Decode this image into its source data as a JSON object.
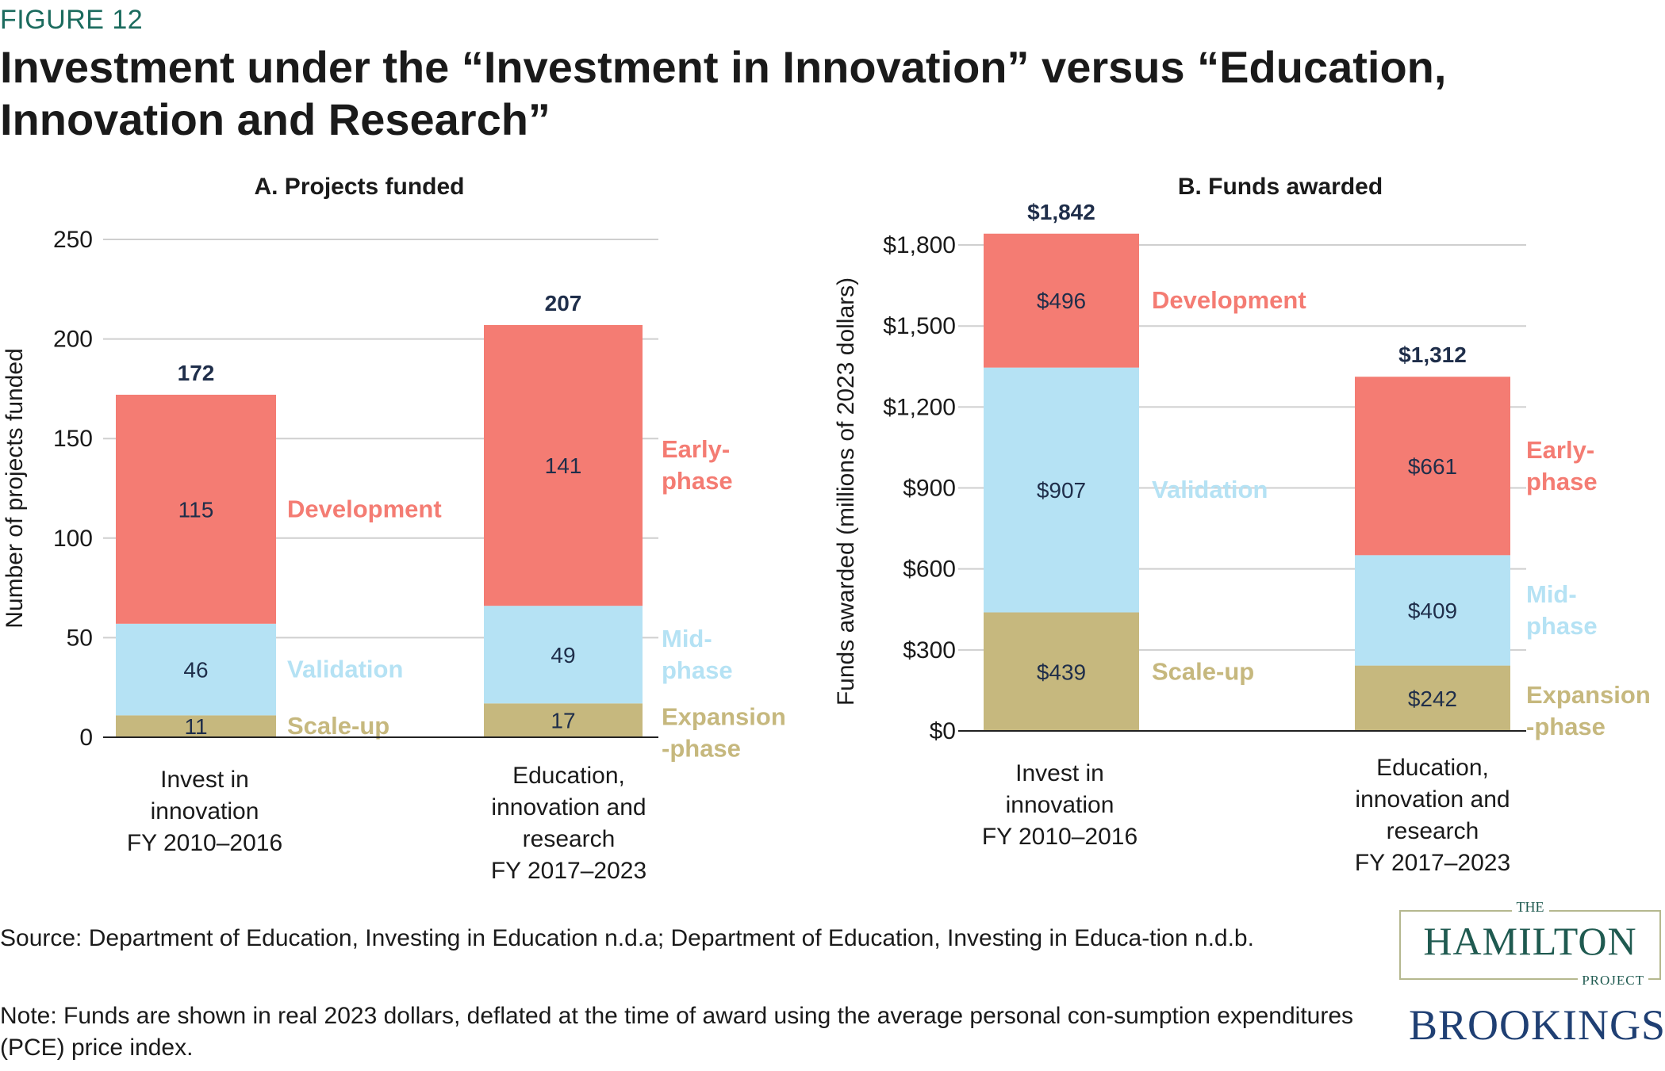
{
  "figure_label": "FIGURE 12",
  "title": "Investment under the “Investment in Innovation” versus “Education, Innovation and Research”",
  "source": "Source: Department of Education, Investing in Education n.d.a; Department of Education, Investing in Educa-tion n.d.b.",
  "note": "Note: Funds are shown in real 2023 dollars, deflated at the time of award using the average personal con-sumption expenditures (PCE) price index.",
  "logos": {
    "hamilton_the": "THE",
    "hamilton_name": "HAMILTON",
    "hamilton_project": "PROJECT",
    "brookings": "BROOKINGS"
  },
  "colors": {
    "development": "#f47c73",
    "validation": "#b5e2f4",
    "scaleup": "#c6b87e",
    "grid": "#cfcfcf",
    "total_label": "#1f2e4a"
  },
  "chart_data": [
    {
      "type": "bar",
      "stacked": true,
      "title": "A. Projects funded",
      "ylabel": "Number of projects funded",
      "ylim": [
        0,
        250
      ],
      "yticks": [
        0,
        50,
        100,
        150,
        200,
        250
      ],
      "ytick_labels": [
        "0",
        "50",
        "100",
        "150",
        "200",
        "250"
      ],
      "grid": true,
      "categories": [
        [
          "Invest in",
          "innovation",
          "FY 2010–2016"
        ],
        [
          "Education,",
          "innovation and",
          "research",
          "FY 2017–2023"
        ]
      ],
      "series": [
        {
          "key": "scaleup",
          "values": [
            11,
            17
          ],
          "value_labels": [
            "11",
            "17"
          ],
          "legend": [
            [
              "Scale-up"
            ],
            [
              "Expansion",
              "-phase"
            ]
          ]
        },
        {
          "key": "validation",
          "values": [
            46,
            49
          ],
          "value_labels": [
            "46",
            "49"
          ],
          "legend": [
            [
              "Validation"
            ],
            [
              "Mid-",
              "phase"
            ]
          ]
        },
        {
          "key": "development",
          "values": [
            115,
            141
          ],
          "value_labels": [
            "115",
            "141"
          ],
          "legend": [
            [
              "Development"
            ],
            [
              "Early-",
              "phase"
            ]
          ]
        }
      ],
      "totals": [
        172,
        207
      ],
      "total_labels": [
        "172",
        "207"
      ]
    },
    {
      "type": "bar",
      "stacked": true,
      "title": "B. Funds awarded",
      "ylabel": "Funds awarded (millions of 2023 dollars)",
      "ylim": [
        0,
        1900
      ],
      "yticks": [
        0,
        300,
        600,
        900,
        1200,
        1500,
        1800
      ],
      "ytick_labels": [
        "$0",
        "$300",
        "$600",
        "$900",
        "$1,200",
        "$1,500",
        "$1,800"
      ],
      "grid": true,
      "categories": [
        [
          "Invest in",
          "innovation",
          "FY 2010–2016"
        ],
        [
          "Education,",
          "innovation and",
          "research",
          "FY 2017–2023"
        ]
      ],
      "series": [
        {
          "key": "scaleup",
          "values": [
            439,
            242
          ],
          "value_labels": [
            "$439",
            "$242"
          ],
          "legend": [
            [
              "Scale-up"
            ],
            [
              "Expansion",
              "-phase"
            ]
          ]
        },
        {
          "key": "validation",
          "values": [
            907,
            409
          ],
          "value_labels": [
            "$907",
            "$409"
          ],
          "legend": [
            [
              "Validation"
            ],
            [
              "Mid-",
              "phase"
            ]
          ]
        },
        {
          "key": "development",
          "values": [
            496,
            661
          ],
          "value_labels": [
            "$496",
            "$661"
          ],
          "legend": [
            [
              "Development"
            ],
            [
              "Early-",
              "phase"
            ]
          ]
        }
      ],
      "totals": [
        1842,
        1312
      ],
      "total_labels": [
        "$1,842",
        "$1,312"
      ]
    }
  ]
}
